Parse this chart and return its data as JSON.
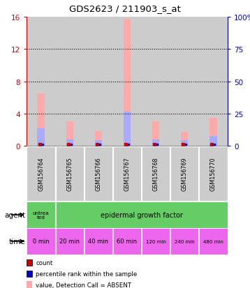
{
  "title": "GDS2623 / 211903_s_at",
  "samples": [
    "GSM156764",
    "GSM156765",
    "GSM156766",
    "GSM156767",
    "GSM156768",
    "GSM156769",
    "GSM156770"
  ],
  "pink_bar_heights": [
    6.5,
    3.0,
    1.8,
    15.7,
    3.0,
    1.7,
    3.5
  ],
  "blue_bar_heights": [
    2.2,
    0.8,
    0.7,
    4.2,
    0.8,
    0.7,
    1.2
  ],
  "ylim": [
    0,
    16
  ],
  "yticks_left": [
    0,
    4,
    8,
    12,
    16
  ],
  "yticks_right": [
    0,
    25,
    50,
    75,
    100
  ],
  "ylabels_left": [
    "0",
    "4",
    "8",
    "12",
    "16"
  ],
  "ylabels_right": [
    "0",
    "25",
    "50",
    "75",
    "100%"
  ],
  "left_axis_color": "#cc0000",
  "right_axis_color": "#0000cc",
  "pink_color": "#ffaaaa",
  "light_blue_color": "#aaaaff",
  "red_dot_color": "#cc0000",
  "blue_dot_color": "#0000cc",
  "col_bg_color": "#cccccc",
  "untreated_color": "#66cc66",
  "egf_color": "#66cc66",
  "time_color": "#ee66ee",
  "time_labels": [
    "0 min",
    "20 min",
    "40 min",
    "60 min",
    "120 min",
    "240 min",
    "480 min"
  ],
  "legend_items": [
    {
      "color": "#cc0000",
      "label": "count"
    },
    {
      "color": "#0000cc",
      "label": "percentile rank within the sample"
    },
    {
      "color": "#ffaaaa",
      "label": "value, Detection Call = ABSENT"
    },
    {
      "color": "#aaaaff",
      "label": "rank, Detection Call = ABSENT"
    }
  ]
}
